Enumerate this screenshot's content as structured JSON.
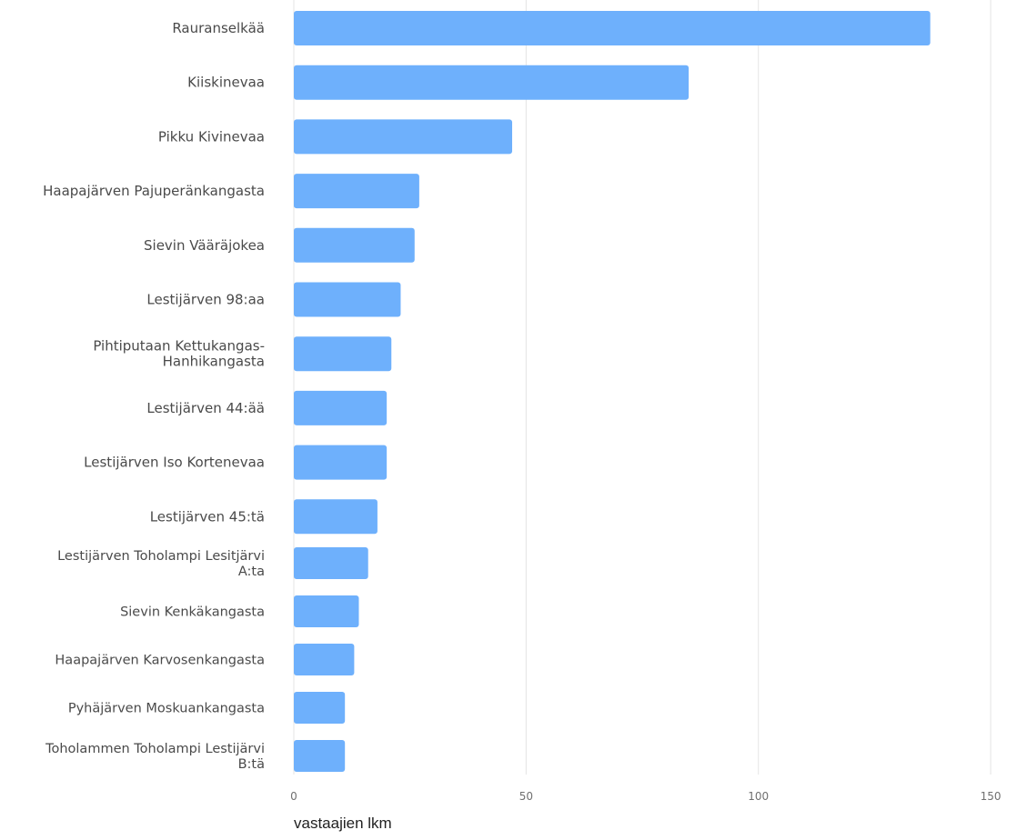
{
  "chart_data": {
    "type": "bar",
    "orientation": "horizontal",
    "categories": [
      "Rauranselkää",
      "Kiiskinevaa",
      "Pikku Kivinevaa",
      "Haapajärven Pajuperänkangasta",
      "Sievin Vääräjokea",
      "Lestijärven 98:aa",
      "Pihtiputaan Kettukangas-Hanhikangasta",
      "Lestijärven 44:ää",
      "Lestijärven Iso Kortenevaa",
      "Lestijärven 45:tä",
      "Lestijärven Toholampi Lesitjärvi A:ta",
      "Sievin Kenkäkangasta",
      "Haapajärven Karvosenkangasta",
      "Pyhäjärven Moskuankangasta",
      "Toholammen Toholampi Lestijärvi B:tä"
    ],
    "category_label_lines": [
      [
        "Rauranselkää"
      ],
      [
        "Kiiskinevaa"
      ],
      [
        "Pikku Kivinevaa"
      ],
      [
        "Haapajärven Pajuperänkangasta"
      ],
      [
        "Sievin Vääräjokea"
      ],
      [
        "Lestijärven 98:aa"
      ],
      [
        "Pihtiputaan Kettukangas-",
        "Hanhikangasta"
      ],
      [
        "Lestijärven 44:ää"
      ],
      [
        "Lestijärven Iso Kortenevaa"
      ],
      [
        "Lestijärven 45:tä"
      ],
      [
        "Lestijärven Toholampi Lesitjärvi",
        "A:ta"
      ],
      [
        "Sievin Kenkäkangasta"
      ],
      [
        "Haapajärven Karvosenkangasta"
      ],
      [
        "Pyhäjärven Moskuankangasta"
      ],
      [
        "Toholammen Toholampi Lestijärvi",
        "B:tä"
      ]
    ],
    "values": [
      137,
      85,
      47,
      27,
      26,
      23,
      21,
      20,
      20,
      18,
      16,
      14,
      13,
      11,
      11
    ],
    "xlabel": "vastaajien lkm",
    "ylabel": "",
    "title": "",
    "xlim": [
      0,
      150
    ],
    "xticks": [
      0,
      50,
      100,
      150
    ],
    "grid": "vertical",
    "legend": "none",
    "bar_color": "#6eb0fc"
  }
}
